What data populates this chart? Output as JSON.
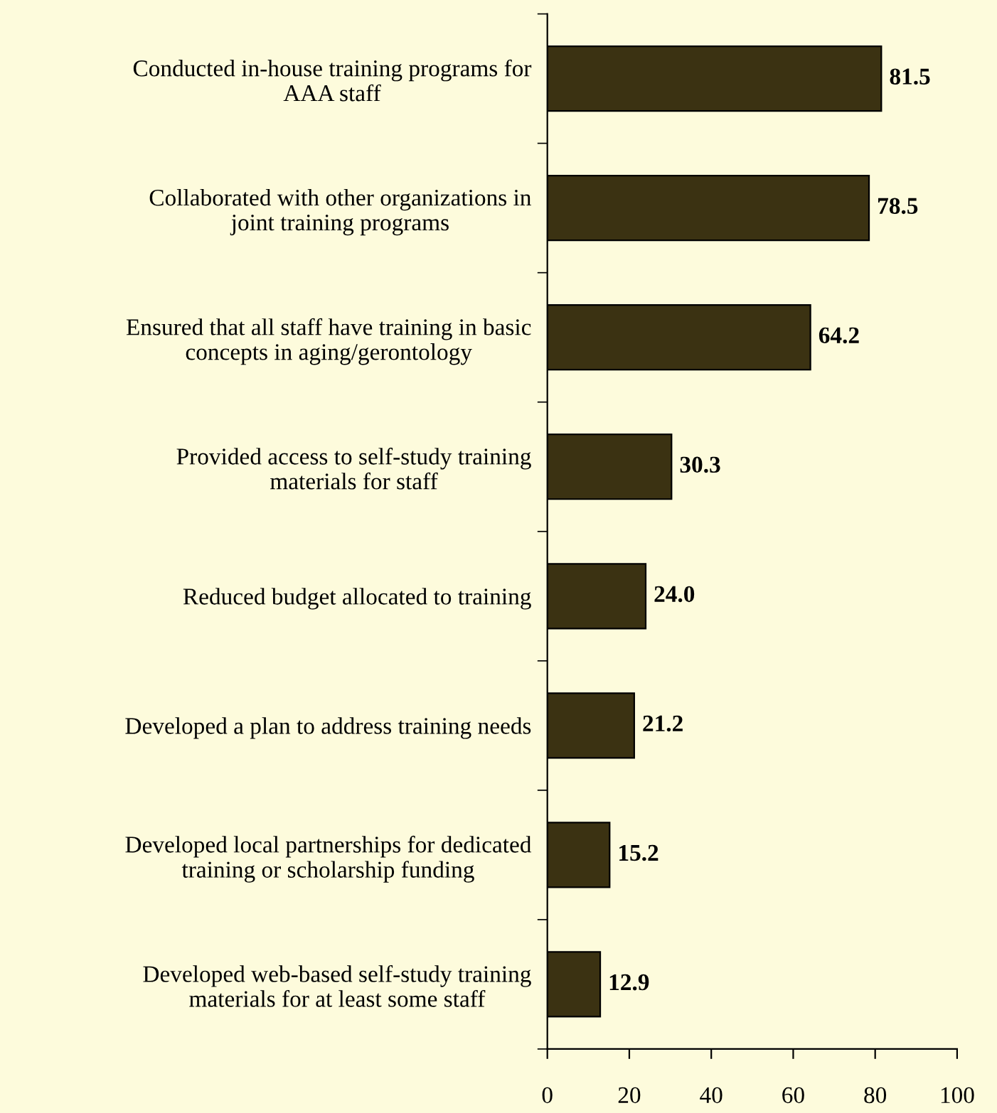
{
  "chart_data": {
    "type": "bar",
    "orientation": "horizontal",
    "categories": [
      "Conducted in-house training programs for\nAAA staff",
      "Collaborated with other organizations in\njoint training programs",
      "Ensured that all staff have training in basic\nconcepts in aging/gerontology",
      "Provided access to self-study training\nmaterials for staff",
      "Reduced budget allocated to training",
      "Developed a plan to address training needs",
      "Developed local partnerships for dedicated\ntraining or scholarship funding",
      "Developed web-based self-study training\nmaterials for at least some staff"
    ],
    "values": [
      81.5,
      78.5,
      64.2,
      30.3,
      24.0,
      21.2,
      15.2,
      12.9
    ],
    "value_labels": [
      "81.5",
      "78.5",
      "64.2",
      "30.3",
      "24.0",
      "21.2",
      "15.2",
      "12.9"
    ],
    "color": "#3b3212",
    "xlim": [
      0,
      100
    ],
    "xticks": [
      0,
      20,
      40,
      60,
      80,
      100
    ],
    "grid": false,
    "legend": false
  }
}
